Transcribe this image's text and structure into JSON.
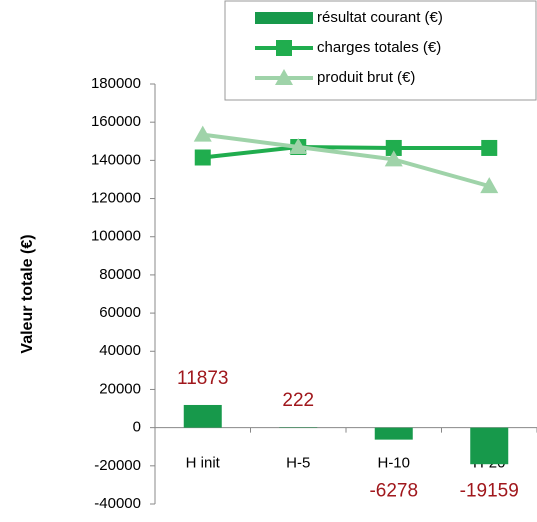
{
  "chart_data": {
    "type": "bar_line",
    "y_label": "Valeur totale (€)",
    "categories": [
      "H init",
      "H-5",
      "H-10",
      "H-20"
    ],
    "series": [
      {
        "name": "résultat courant (€)",
        "type": "bar",
        "color": "#17994b",
        "values": [
          11873,
          222,
          -6278,
          -19159
        ]
      },
      {
        "name": "charges totales (€)",
        "type": "line",
        "marker": "square",
        "color": "#20ad4e",
        "values": [
          141500,
          147000,
          146500,
          146500
        ]
      },
      {
        "name": "produit brut (€)",
        "type": "line",
        "marker": "triangle",
        "color": "#9fd3a9",
        "values": [
          153500,
          147000,
          140500,
          126500
        ]
      }
    ],
    "ylim": [
      -40000,
      180000
    ],
    "yticks": [
      -40000,
      -20000,
      0,
      20000,
      40000,
      60000,
      80000,
      100000,
      120000,
      140000,
      160000,
      180000
    ],
    "legend": "top-right"
  }
}
